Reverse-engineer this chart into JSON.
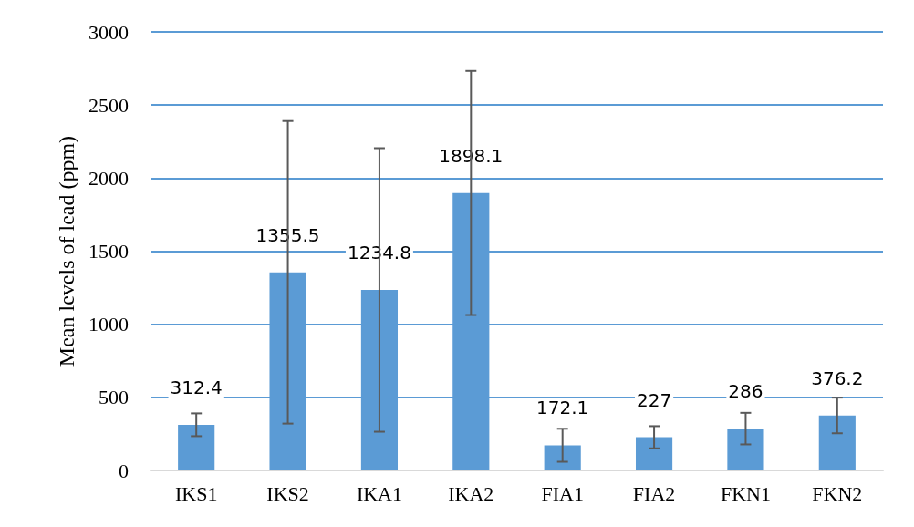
{
  "chart_data": {
    "type": "bar",
    "ylabel": "Mean levels of lead (ppm)",
    "categories": [
      "IKS1",
      "IKS2",
      "IKA1",
      "IKA2",
      "FIA1",
      "FIA2",
      "FKN1",
      "FKN2"
    ],
    "values": [
      312.4,
      1355.5,
      1234.8,
      1898.1,
      172.1,
      227,
      286,
      376.2
    ],
    "errors": [
      78,
      1035,
      970,
      835,
      113,
      76,
      108,
      122
    ],
    "color": "#5b9bd5",
    "ylim": [
      0,
      3000
    ],
    "yticks": [
      0,
      500,
      1000,
      1500,
      2000,
      2500,
      3000
    ],
    "grid": "y",
    "data_labels": true
  }
}
